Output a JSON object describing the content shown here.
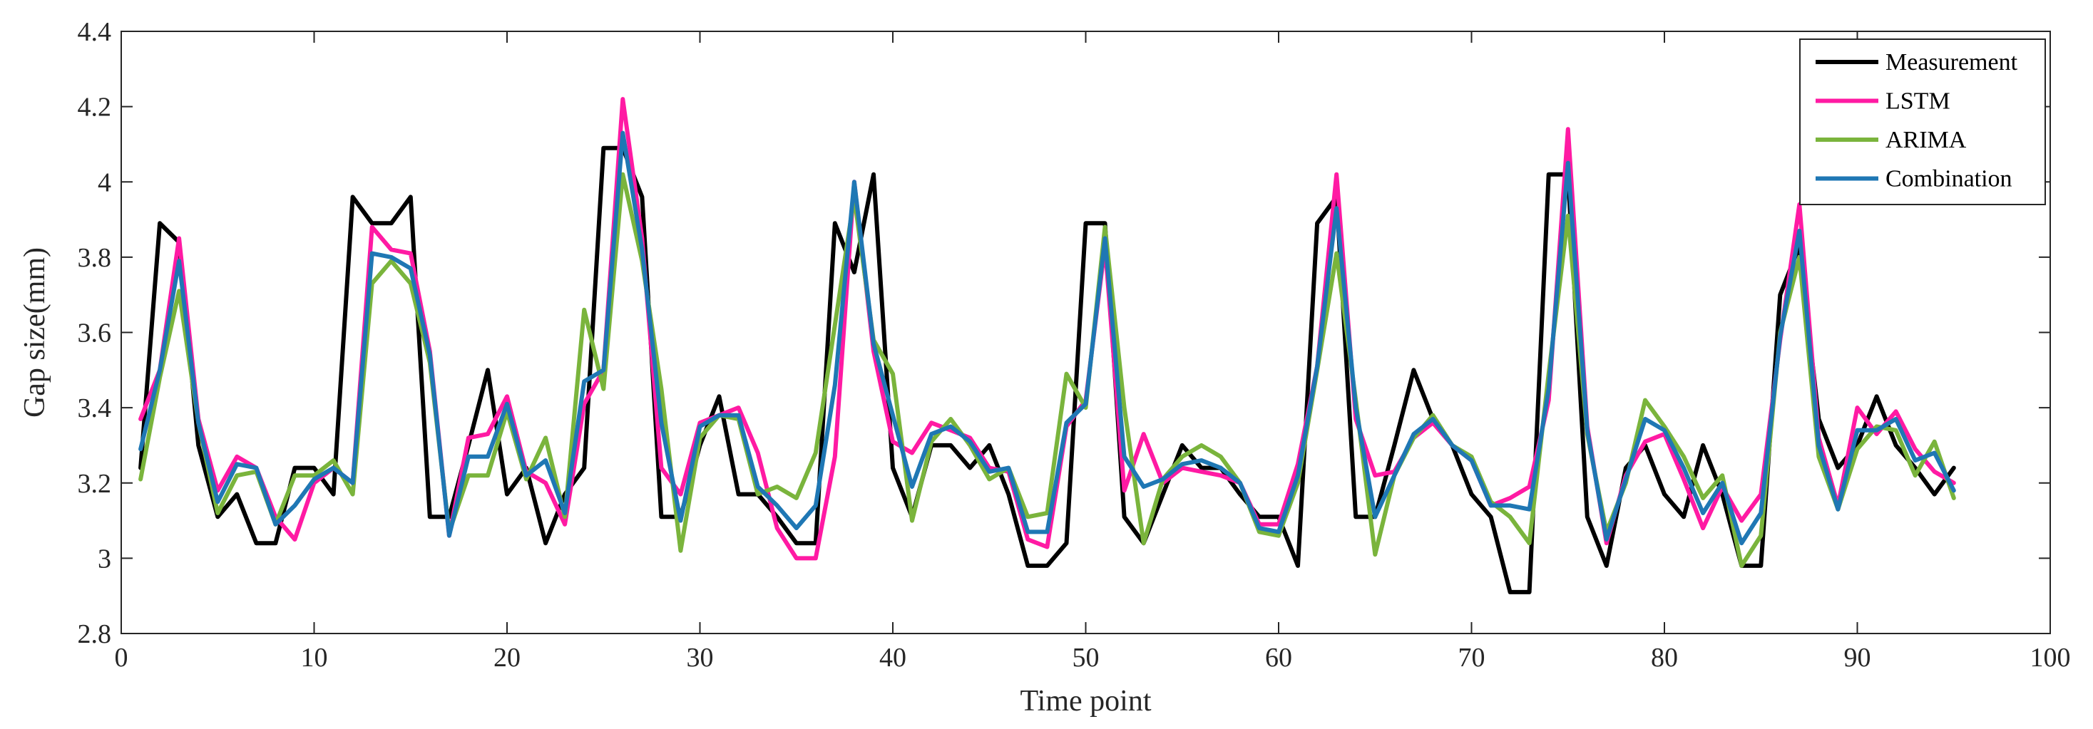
{
  "chart_data": {
    "type": "line",
    "title": "",
    "xlabel": "Time point",
    "ylabel": "Gap size(mm)",
    "xlim": [
      0,
      100
    ],
    "ylim": [
      2.8,
      4.4
    ],
    "xticks": [
      0,
      10,
      20,
      30,
      40,
      50,
      60,
      70,
      80,
      90,
      100
    ],
    "yticks": [
      2.8,
      3,
      3.2,
      3.4,
      3.6,
      3.8,
      4,
      4.2,
      4.4
    ],
    "xtick_labels": [
      "0",
      "10",
      "20",
      "30",
      "40",
      "50",
      "60",
      "70",
      "80",
      "90",
      "100"
    ],
    "ytick_labels": [
      "2.8",
      "3",
      "3.2",
      "3.4",
      "3.6",
      "3.8",
      "4",
      "4.2",
      "4.4"
    ],
    "grid": false,
    "legend_position": "top-right",
    "x": [
      1,
      2,
      3,
      4,
      5,
      6,
      7,
      8,
      9,
      10,
      11,
      12,
      13,
      14,
      15,
      16,
      17,
      18,
      19,
      20,
      21,
      22,
      23,
      24,
      25,
      26,
      27,
      28,
      29,
      30,
      31,
      32,
      33,
      34,
      35,
      36,
      37,
      38,
      39,
      40,
      41,
      42,
      43,
      44,
      45,
      46,
      47,
      48,
      49,
      50,
      51,
      52,
      53,
      54,
      55,
      56,
      57,
      58,
      59,
      60,
      61,
      62,
      63,
      64,
      65,
      66,
      67,
      68,
      69,
      70,
      71,
      72,
      73,
      74,
      75,
      76,
      77,
      78,
      79,
      80,
      81,
      82,
      83,
      84,
      85,
      86,
      87,
      88,
      89,
      90,
      91,
      92,
      93,
      94,
      95
    ],
    "series": [
      {
        "name": "Measurement",
        "color": "#000000",
        "values": [
          3.24,
          3.89,
          3.84,
          3.3,
          3.11,
          3.17,
          3.04,
          3.04,
          3.24,
          3.24,
          3.17,
          3.96,
          3.89,
          3.89,
          3.96,
          3.11,
          3.11,
          3.3,
          3.5,
          3.17,
          3.24,
          3.04,
          3.17,
          3.24,
          4.09,
          4.09,
          3.96,
          3.11,
          3.11,
          3.3,
          3.43,
          3.17,
          3.17,
          3.11,
          3.04,
          3.04,
          3.89,
          3.76,
          4.02,
          3.24,
          3.11,
          3.3,
          3.3,
          3.24,
          3.3,
          3.17,
          2.98,
          2.98,
          3.04,
          3.89,
          3.89,
          3.11,
          3.04,
          3.17,
          3.3,
          3.24,
          3.24,
          3.17,
          3.11,
          3.11,
          2.98,
          3.89,
          3.96,
          3.11,
          3.11,
          3.3,
          3.5,
          3.37,
          3.3,
          3.17,
          3.11,
          2.91,
          2.91,
          4.02,
          4.02,
          3.11,
          2.98,
          3.24,
          3.3,
          3.17,
          3.11,
          3.3,
          3.17,
          2.98,
          2.98,
          3.7,
          3.83,
          3.37,
          3.24,
          3.3,
          3.43,
          3.3,
          3.24,
          3.17,
          3.24
        ]
      },
      {
        "name": "LSTM",
        "color": "#ff1aa3",
        "values": [
          3.37,
          3.5,
          3.85,
          3.37,
          3.18,
          3.27,
          3.24,
          3.11,
          3.05,
          3.2,
          3.24,
          3.2,
          3.88,
          3.82,
          3.81,
          3.55,
          3.06,
          3.32,
          3.33,
          3.43,
          3.23,
          3.2,
          3.09,
          3.41,
          3.5,
          4.22,
          3.85,
          3.24,
          3.17,
          3.36,
          3.38,
          3.4,
          3.28,
          3.08,
          3.0,
          3.0,
          3.27,
          4.0,
          3.55,
          3.31,
          3.28,
          3.36,
          3.34,
          3.32,
          3.24,
          3.23,
          3.05,
          3.03,
          3.35,
          3.42,
          3.83,
          3.18,
          3.33,
          3.2,
          3.24,
          3.23,
          3.22,
          3.2,
          3.09,
          3.09,
          3.25,
          3.51,
          4.02,
          3.37,
          3.22,
          3.23,
          3.32,
          3.36,
          3.3,
          3.26,
          3.14,
          3.16,
          3.19,
          3.42,
          4.14,
          3.35,
          3.04,
          3.22,
          3.31,
          3.33,
          3.21,
          3.08,
          3.19,
          3.1,
          3.17,
          3.58,
          3.94,
          3.32,
          3.14,
          3.4,
          3.33,
          3.39,
          3.29,
          3.23,
          3.2
        ]
      },
      {
        "name": "ARIMA",
        "color": "#7ab43c",
        "values": [
          3.21,
          3.48,
          3.71,
          3.36,
          3.12,
          3.22,
          3.23,
          3.09,
          3.22,
          3.22,
          3.26,
          3.17,
          3.73,
          3.79,
          3.73,
          3.52,
          3.07,
          3.22,
          3.22,
          3.39,
          3.21,
          3.32,
          3.11,
          3.66,
          3.45,
          4.02,
          3.79,
          3.45,
          3.02,
          3.32,
          3.38,
          3.37,
          3.17,
          3.19,
          3.16,
          3.28,
          3.62,
          3.96,
          3.58,
          3.49,
          3.1,
          3.31,
          3.37,
          3.3,
          3.21,
          3.24,
          3.11,
          3.12,
          3.49,
          3.4,
          3.88,
          3.4,
          3.04,
          3.21,
          3.27,
          3.3,
          3.27,
          3.2,
          3.07,
          3.06,
          3.2,
          3.5,
          3.81,
          3.42,
          3.01,
          3.22,
          3.32,
          3.38,
          3.3,
          3.27,
          3.15,
          3.11,
          3.04,
          3.49,
          3.91,
          3.33,
          3.07,
          3.2,
          3.42,
          3.35,
          3.27,
          3.16,
          3.22,
          2.98,
          3.06,
          3.6,
          3.8,
          3.27,
          3.13,
          3.29,
          3.35,
          3.34,
          3.22,
          3.31,
          3.16
        ]
      },
      {
        "name": "Combination",
        "color": "#1f77b4",
        "values": [
          3.29,
          3.5,
          3.79,
          3.36,
          3.15,
          3.25,
          3.24,
          3.09,
          3.14,
          3.21,
          3.24,
          3.2,
          3.81,
          3.8,
          3.77,
          3.54,
          3.06,
          3.27,
          3.27,
          3.41,
          3.22,
          3.26,
          3.12,
          3.47,
          3.5,
          4.13,
          3.82,
          3.36,
          3.1,
          3.35,
          3.38,
          3.38,
          3.19,
          3.14,
          3.08,
          3.14,
          3.46,
          4.0,
          3.57,
          3.38,
          3.19,
          3.33,
          3.35,
          3.31,
          3.23,
          3.24,
          3.07,
          3.07,
          3.36,
          3.41,
          3.85,
          3.27,
          3.19,
          3.21,
          3.25,
          3.26,
          3.24,
          3.2,
          3.08,
          3.07,
          3.22,
          3.51,
          3.93,
          3.4,
          3.11,
          3.22,
          3.33,
          3.37,
          3.3,
          3.26,
          3.14,
          3.14,
          3.13,
          3.45,
          4.05,
          3.34,
          3.05,
          3.21,
          3.37,
          3.34,
          3.24,
          3.12,
          3.2,
          3.04,
          3.12,
          3.59,
          3.87,
          3.3,
          3.13,
          3.34,
          3.34,
          3.37,
          3.26,
          3.28,
          3.18
        ]
      }
    ]
  }
}
